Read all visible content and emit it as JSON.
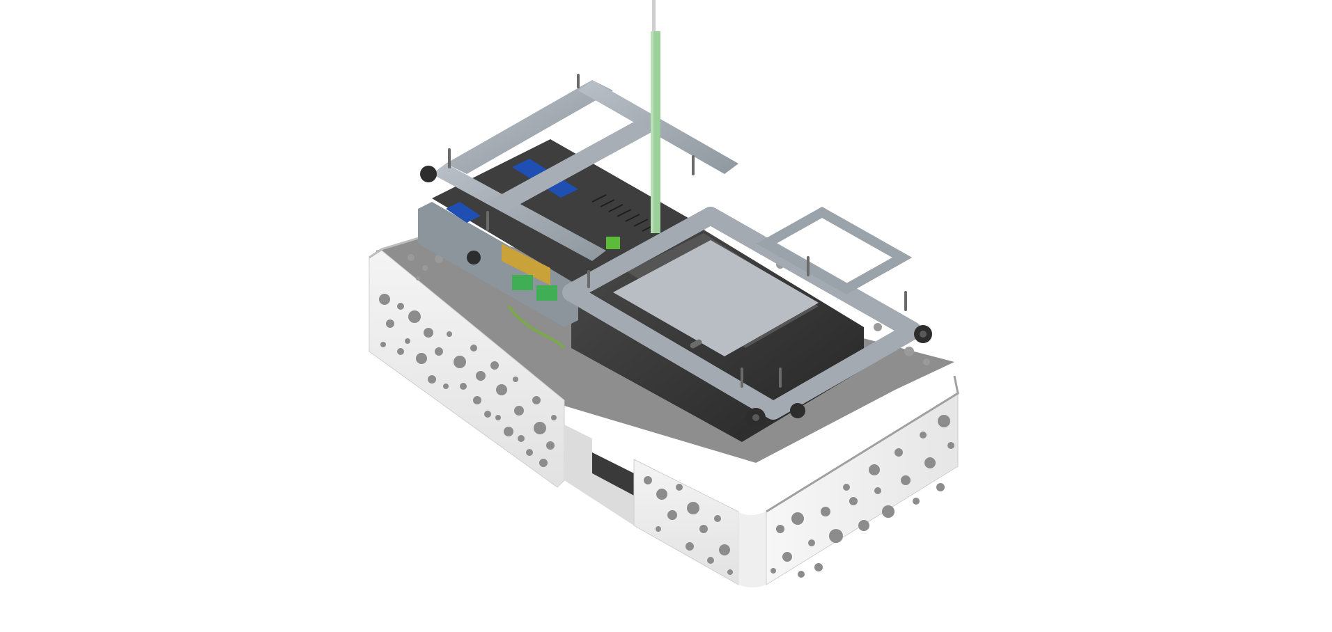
{
  "scene": {
    "subject": "sheet-metal-enclosure-assembly",
    "background_color": "#ffffff",
    "colors": {
      "white_panel": "#f2f2f2",
      "white_panel_shade": "#e3e3e3",
      "white_panel_dark": "#d6d6d6",
      "perforation": "#8a8a8a",
      "tray_floor": "#7d7d7d",
      "galvanized": "#9aa2aa",
      "galvanized_light": "#b7bec5",
      "galvanized_dark": "#7d858d",
      "dark_part": "#3a3a3a",
      "darker_part": "#2a2a2a",
      "blue_strip": "#1f4fb3",
      "terminal_green": "#3fae55",
      "rod_green": "#9ccf9a",
      "rod_grey": "#cfcfcf",
      "knob": "#2d2d2d"
    }
  }
}
